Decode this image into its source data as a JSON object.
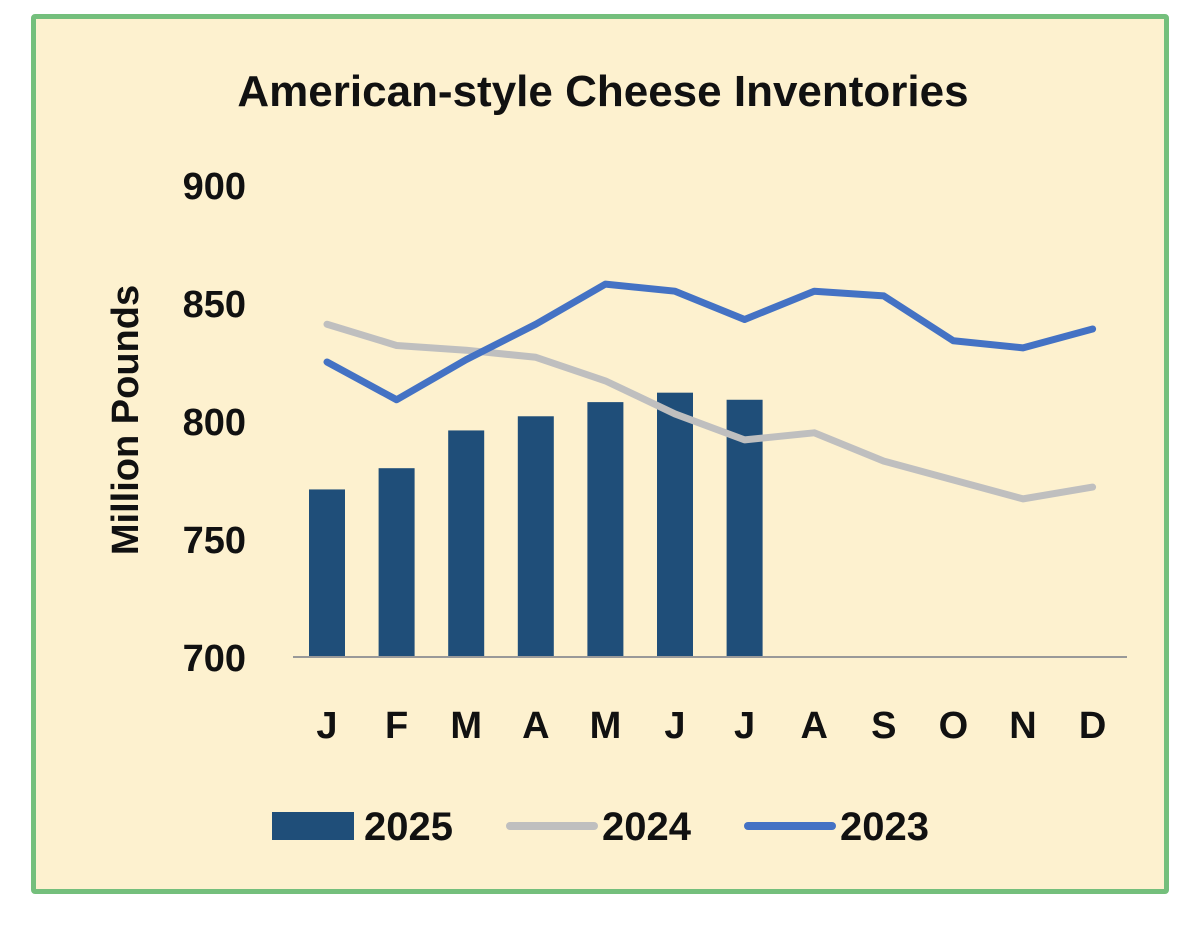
{
  "chart_data": {
    "type": "bar+line",
    "title": "American-style Cheese Inventories",
    "xlabel": "",
    "ylabel": "Million Pounds",
    "ylim": [
      700,
      900
    ],
    "yticks": [
      700,
      750,
      800,
      850,
      900
    ],
    "categories": [
      "J",
      "F",
      "M",
      "A",
      "M",
      "J",
      "J",
      "A",
      "S",
      "O",
      "N",
      "D"
    ],
    "grid": false,
    "legend_position": "bottom",
    "series": [
      {
        "name": "2025",
        "kind": "bar",
        "color": "#1f4e79",
        "values": [
          771,
          780,
          796,
          802,
          808,
          812,
          809,
          null,
          null,
          null,
          null,
          null
        ]
      },
      {
        "name": "2024",
        "kind": "line",
        "color": "#bfbfbf",
        "values": [
          841,
          832,
          830,
          827,
          817,
          803,
          792,
          795,
          783,
          775,
          767,
          772
        ]
      },
      {
        "name": "2023",
        "kind": "line",
        "color": "#4472c4",
        "values": [
          825,
          809,
          826,
          841,
          858,
          855,
          843,
          855,
          853,
          834,
          831,
          839
        ]
      }
    ]
  },
  "colors": {
    "background": "#fdf1cf",
    "border": "#74bf7c"
  }
}
